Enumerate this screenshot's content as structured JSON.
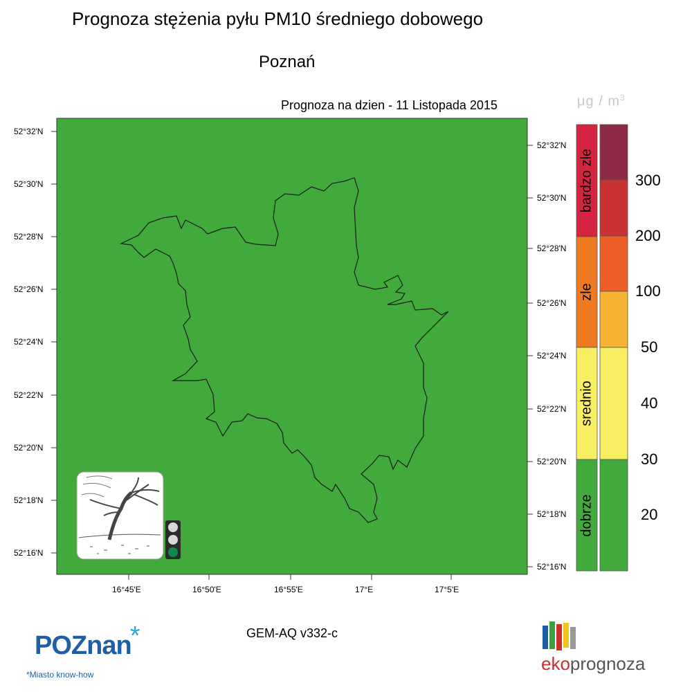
{
  "title": "Prognoza stężenia pyłu PM10 średniego dobowego",
  "city": "Poznań",
  "forecast_label": "Prognoza na dzien -  11 Listopada 2015",
  "units": {
    "mu": "μg",
    "slash": " / ",
    "m": "m",
    "exp": "3"
  },
  "model": "GEM-AQ v332-c",
  "lat_labels": [
    "52°32'N",
    "52°30'N",
    "52°28'N",
    "52°26'N",
    "52°24'N",
    "52°22'N",
    "52°20'N",
    "52°18'N",
    "52°16'N"
  ],
  "lon_labels": [
    "16°45'E",
    "16°50'E",
    "16°55'E",
    "17°E",
    "17°5'E"
  ],
  "map_fill_color": "#42aa3c",
  "legend": {
    "categories": [
      {
        "label": "bardzo zle",
        "color": "#d42440"
      },
      {
        "label": "zle",
        "color": "#ef7a22"
      },
      {
        "label": "srednio",
        "color": "#f8ee62"
      },
      {
        "label": "dobrze",
        "color": "#42aa3c"
      }
    ],
    "scale_colors": [
      "#8c2a45",
      "#c93232",
      "#eb5f26",
      "#f8b233",
      "#f8ee62",
      "#42aa3c"
    ],
    "scale_values": [
      "300",
      "200",
      "100",
      "50",
      "40",
      "30",
      "20"
    ]
  },
  "traffic_light": {
    "active": "green"
  },
  "logos": {
    "poznan": {
      "text": "POZnan",
      "tagline": "*Miasto know-how"
    },
    "ekoprognoza": {
      "prefix": "eko",
      "suffix": "prognoza"
    }
  }
}
